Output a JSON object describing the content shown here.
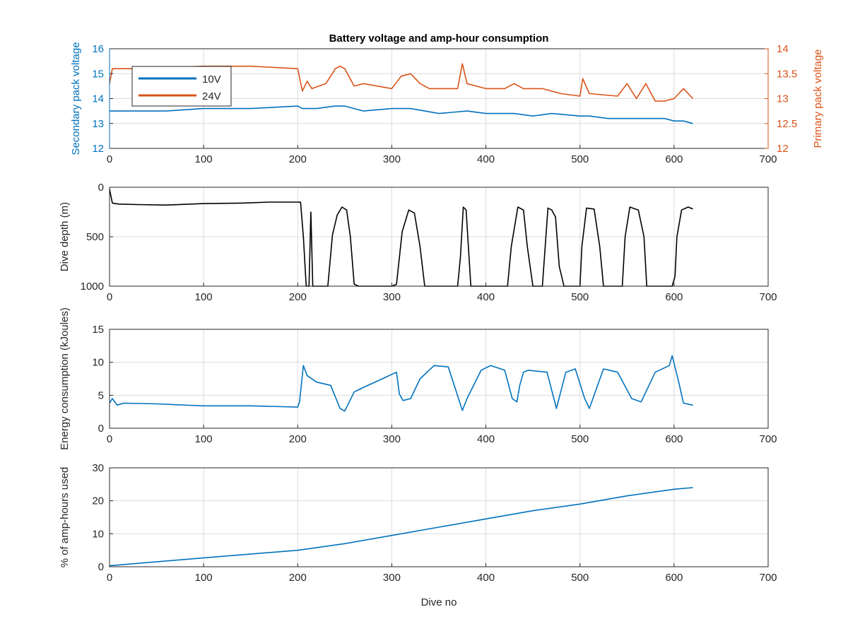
{
  "chart_data": [
    {
      "type": "line",
      "title": "Battery voltage and amp-hour consumption",
      "xlabel": "",
      "ylabel": "Secondary pack voltage",
      "y2label": "Primary pack voltage",
      "xlim": [
        0,
        700
      ],
      "ylim": [
        12,
        16
      ],
      "y2lim": [
        12,
        14
      ],
      "xticks": [
        0,
        100,
        200,
        300,
        400,
        500,
        600,
        700
      ],
      "yticks": [
        12,
        13,
        14,
        15,
        16
      ],
      "y2ticks": [
        12,
        12.5,
        13,
        13.5,
        14
      ],
      "grid": true,
      "legend": "top-left",
      "series": [
        {
          "name": "10V",
          "axis": "left",
          "color": "#0072BD",
          "x": [
            0,
            10,
            30,
            60,
            100,
            150,
            200,
            205,
            220,
            240,
            250,
            270,
            300,
            320,
            350,
            380,
            400,
            430,
            450,
            470,
            500,
            510,
            530,
            550,
            570,
            590,
            600,
            610,
            620
          ],
          "y": [
            13.5,
            13.5,
            13.5,
            13.5,
            13.6,
            13.6,
            13.7,
            13.6,
            13.6,
            13.7,
            13.7,
            13.5,
            13.6,
            13.6,
            13.4,
            13.5,
            13.4,
            13.4,
            13.3,
            13.4,
            13.3,
            13.3,
            13.2,
            13.2,
            13.2,
            13.2,
            13.1,
            13.1,
            13.0
          ]
        },
        {
          "name": "24V",
          "axis": "right",
          "color": "#D95319",
          "x": [
            0,
            3,
            30,
            100,
            150,
            200,
            205,
            210,
            215,
            230,
            240,
            245,
            250,
            260,
            270,
            300,
            310,
            320,
            330,
            340,
            370,
            375,
            380,
            390,
            400,
            420,
            430,
            440,
            460,
            480,
            500,
            503,
            510,
            540,
            550,
            560,
            570,
            580,
            590,
            600,
            610,
            620
          ],
          "y": [
            13.3,
            13.6,
            13.6,
            13.65,
            13.65,
            13.6,
            13.15,
            13.35,
            13.2,
            13.3,
            13.6,
            13.65,
            13.6,
            13.25,
            13.3,
            13.2,
            13.45,
            13.5,
            13.3,
            13.2,
            13.2,
            13.7,
            13.3,
            13.25,
            13.2,
            13.2,
            13.3,
            13.2,
            13.2,
            13.1,
            13.05,
            13.4,
            13.1,
            13.05,
            13.3,
            13.0,
            13.3,
            12.95,
            12.95,
            13.0,
            13.2,
            13.0
          ]
        }
      ]
    },
    {
      "type": "line",
      "title": "",
      "xlabel": "",
      "ylabel": "Dive depth (m)",
      "xlim": [
        0,
        700
      ],
      "ylim": [
        1000,
        0
      ],
      "xticks": [
        0,
        100,
        200,
        300,
        400,
        500,
        600,
        700
      ],
      "yticks": [
        0,
        500,
        1000
      ],
      "grid": true,
      "series": [
        {
          "color": "#000000",
          "x": [
            0,
            3,
            10,
            30,
            60,
            100,
            140,
            170,
            200,
            203,
            206,
            209,
            212,
            214,
            216,
            219,
            225,
            232,
            237,
            242,
            247,
            252,
            256,
            260,
            265,
            300,
            305,
            311,
            318,
            324,
            330,
            335,
            370,
            373,
            376,
            379,
            384,
            405,
            423,
            427,
            434,
            440,
            444,
            450,
            460,
            463,
            466,
            470,
            474,
            478,
            483,
            500,
            502,
            507,
            515,
            521,
            525,
            545,
            548,
            553,
            562,
            568,
            571,
            598,
            601,
            603,
            608,
            615,
            620
          ],
          "y": [
            20,
            160,
            170,
            175,
            180,
            165,
            160,
            150,
            150,
            150,
            500,
            1000,
            1000,
            250,
            1000,
            1000,
            1000,
            1000,
            480,
            280,
            200,
            230,
            500,
            980,
            1000,
            1000,
            980,
            450,
            230,
            260,
            600,
            1000,
            1000,
            700,
            200,
            230,
            1000,
            1000,
            1000,
            600,
            200,
            230,
            600,
            1000,
            1000,
            600,
            210,
            230,
            300,
            800,
            1000,
            1000,
            600,
            210,
            220,
            600,
            1000,
            1000,
            500,
            200,
            230,
            500,
            1000,
            1000,
            900,
            500,
            230,
            200,
            220
          ]
        }
      ]
    },
    {
      "type": "line",
      "title": "",
      "xlabel": "",
      "ylabel": "Energy consumption (kJoules)",
      "xlim": [
        0,
        700
      ],
      "ylim": [
        0,
        15
      ],
      "xticks": [
        0,
        100,
        200,
        300,
        400,
        500,
        600,
        700
      ],
      "yticks": [
        0,
        5,
        10,
        15
      ],
      "grid": true,
      "series": [
        {
          "color": "#0072BD",
          "x": [
            0,
            3,
            8,
            15,
            50,
            100,
            150,
            200,
            202,
            206,
            210,
            220,
            235,
            245,
            250,
            260,
            270,
            290,
            305,
            308,
            312,
            320,
            330,
            345,
            360,
            375,
            380,
            395,
            405,
            420,
            428,
            433,
            436,
            440,
            445,
            465,
            475,
            485,
            495,
            505,
            510,
            525,
            540,
            555,
            565,
            580,
            595,
            598,
            605,
            610,
            620
          ],
          "y": [
            3.8,
            4.5,
            3.5,
            3.8,
            3.7,
            3.4,
            3.4,
            3.2,
            4.0,
            9.5,
            8.0,
            7.0,
            6.5,
            3.0,
            2.6,
            5.5,
            6.2,
            7.5,
            8.5,
            5.2,
            4.2,
            4.5,
            7.5,
            9.5,
            9.3,
            2.7,
            4.5,
            8.8,
            9.5,
            8.8,
            4.5,
            4.0,
            6.5,
            8.5,
            8.8,
            8.5,
            3.0,
            8.5,
            9.0,
            4.5,
            3.0,
            9.0,
            8.5,
            4.5,
            4.0,
            8.5,
            9.5,
            11.0,
            7.0,
            3.8,
            3.5
          ]
        }
      ]
    },
    {
      "type": "line",
      "title": "",
      "xlabel": "Dive no",
      "ylabel": "% of amp-hours used",
      "xlim": [
        0,
        700
      ],
      "ylim": [
        0,
        30
      ],
      "xticks": [
        0,
        100,
        200,
        300,
        400,
        500,
        600,
        700
      ],
      "yticks": [
        0,
        10,
        20,
        30
      ],
      "grid": true,
      "series": [
        {
          "color": "#0072BD",
          "x": [
            0,
            100,
            200,
            250,
            300,
            350,
            400,
            450,
            500,
            550,
            600,
            620
          ],
          "y": [
            0.3,
            2.7,
            5.0,
            7.0,
            9.5,
            12.0,
            14.5,
            17.0,
            19.0,
            21.5,
            23.5,
            24.0
          ]
        }
      ]
    }
  ]
}
